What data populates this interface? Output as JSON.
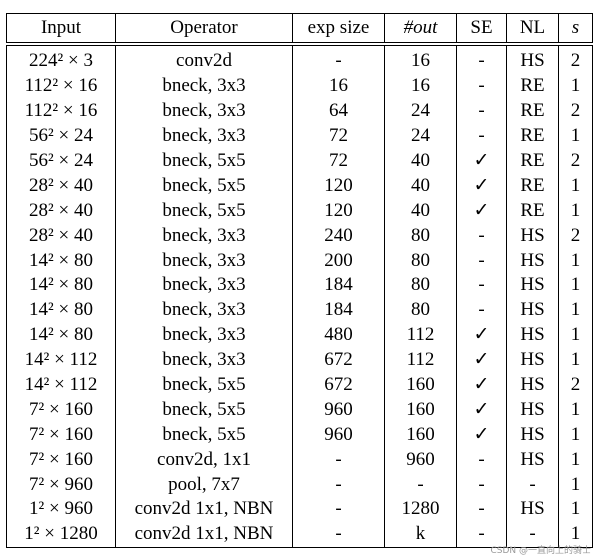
{
  "table": {
    "header": [
      "Input",
      "Operator",
      "exp size",
      "#out",
      "SE",
      "NL",
      "s"
    ],
    "italic_columns": [
      3,
      6
    ],
    "rows": [
      [
        "224² × 3",
        "conv2d",
        "-",
        "16",
        "-",
        "HS",
        "2"
      ],
      [
        "112² × 16",
        "bneck, 3x3",
        "16",
        "16",
        "-",
        "RE",
        "1"
      ],
      [
        "112² × 16",
        "bneck, 3x3",
        "64",
        "24",
        "-",
        "RE",
        "2"
      ],
      [
        "56² × 24",
        "bneck, 3x3",
        "72",
        "24",
        "-",
        "RE",
        "1"
      ],
      [
        "56² × 24",
        "bneck, 5x5",
        "72",
        "40",
        "✓",
        "RE",
        "2"
      ],
      [
        "28² × 40",
        "bneck, 5x5",
        "120",
        "40",
        "✓",
        "RE",
        "1"
      ],
      [
        "28² × 40",
        "bneck, 5x5",
        "120",
        "40",
        "✓",
        "RE",
        "1"
      ],
      [
        "28² × 40",
        "bneck, 3x3",
        "240",
        "80",
        "-",
        "HS",
        "2"
      ],
      [
        "14² × 80",
        "bneck, 3x3",
        "200",
        "80",
        "-",
        "HS",
        "1"
      ],
      [
        "14² × 80",
        "bneck, 3x3",
        "184",
        "80",
        "-",
        "HS",
        "1"
      ],
      [
        "14² × 80",
        "bneck, 3x3",
        "184",
        "80",
        "-",
        "HS",
        "1"
      ],
      [
        "14² × 80",
        "bneck, 3x3",
        "480",
        "112",
        "✓",
        "HS",
        "1"
      ],
      [
        "14² × 112",
        "bneck, 3x3",
        "672",
        "112",
        "✓",
        "HS",
        "1"
      ],
      [
        "14² × 112",
        "bneck, 5x5",
        "672",
        "160",
        "✓",
        "HS",
        "2"
      ],
      [
        "7² × 160",
        "bneck, 5x5",
        "960",
        "160",
        "✓",
        "HS",
        "1"
      ],
      [
        "7² × 160",
        "bneck, 5x5",
        "960",
        "160",
        "✓",
        "HS",
        "1"
      ],
      [
        "7² × 160",
        "conv2d, 1x1",
        "-",
        "960",
        "-",
        "HS",
        "1"
      ],
      [
        "7² × 960",
        "pool, 7x7",
        "-",
        "-",
        "-",
        "-",
        "1"
      ],
      [
        "1² × 960",
        "conv2d 1x1, NBN",
        "-",
        "1280",
        "-",
        "HS",
        "1"
      ],
      [
        "1² × 1280",
        "conv2d 1x1, NBN",
        "-",
        "k",
        "-",
        "-",
        "1"
      ]
    ]
  },
  "watermark": "CSDN @一直向上的骑士"
}
